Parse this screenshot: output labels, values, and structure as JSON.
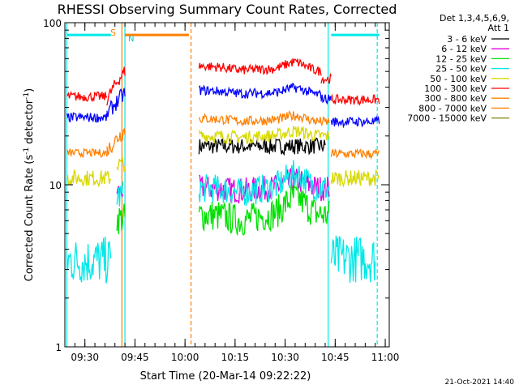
{
  "chart_data": {
    "type": "line",
    "title": "RHESSI Observing Summary Count Rates, Corrected",
    "xlabel": "Start Time (20-Mar-14 09:22:22)",
    "ylabel_main": "Corrected Count Rate (s",
    "ylabel_sup1": "-1",
    "ylabel_mid": " detector",
    "ylabel_sup2": "-1",
    "ylabel_end": ")",
    "yscale": "log",
    "ylim": [
      1,
      100
    ],
    "xlim_minutes": [
      9.4,
      11.02
    ],
    "y_ticks": [
      "1",
      "10",
      "100"
    ],
    "x_ticks": [
      {
        "t": 9.5,
        "label": "09:30"
      },
      {
        "t": 9.75,
        "label": "09:45"
      },
      {
        "t": 10.0,
        "label": "10:00"
      },
      {
        "t": 10.25,
        "label": "10:15"
      },
      {
        "t": 10.5,
        "label": "10:30"
      },
      {
        "t": 10.75,
        "label": "10:45"
      },
      {
        "t": 11.0,
        "label": "11:00"
      }
    ],
    "legend_header": [
      "Det 1,3,4,5,6,9,",
      "Att 1"
    ],
    "legend_position": "right",
    "markers": {
      "saa_label": "S",
      "night_label": "N"
    },
    "footer_date": "21-Oct-2021 14:40",
    "series": [
      {
        "name": "3 - 6 keV",
        "color": "#000000",
        "segments": [
          [
            10.07,
            10.6,
            17.3,
            0.05,
            0,
            0
          ],
          [
            10.6,
            10.7,
            17.3,
            0.05,
            0,
            0
          ]
        ]
      },
      {
        "name": "6 - 12 keV",
        "color": "#e000e0",
        "segments": [
          [
            9.66,
            9.69,
            9.2,
            0.06,
            0,
            0
          ],
          [
            10.07,
            10.72,
            9.5,
            0.08,
            0.12,
            0
          ]
        ]
      },
      {
        "name": "12 - 25 keV",
        "color": "#00e000",
        "segments": [
          [
            9.66,
            9.7,
            6.2,
            0.1,
            0,
            0
          ],
          [
            10.07,
            10.72,
            6.5,
            0.1,
            0.28,
            0
          ]
        ]
      },
      {
        "name": "25 - 50 keV",
        "color": "#00e8e8",
        "segments": [
          [
            9.41,
            9.63,
            3.4,
            0.15,
            0,
            0
          ],
          [
            9.66,
            9.69,
            8.5,
            0.1,
            0,
            0
          ],
          [
            10.07,
            10.72,
            9.5,
            0.09,
            0.22,
            0
          ],
          [
            10.73,
            10.95,
            3.5,
            0.15,
            0,
            0
          ]
        ]
      },
      {
        "name": "50 - 100 keV",
        "color": "#d8d800",
        "segments": [
          [
            9.41,
            9.63,
            11.0,
            0.05,
            0,
            0
          ],
          [
            9.66,
            9.7,
            13.5,
            0.05,
            0,
            0
          ],
          [
            10.07,
            10.72,
            20.0,
            0.04,
            0.07,
            0
          ],
          [
            10.73,
            10.97,
            11.0,
            0.05,
            0,
            0
          ]
        ]
      },
      {
        "name": "100 - 300 keV",
        "color": "#ff0000",
        "segments": [
          [
            9.41,
            9.61,
            35.0,
            0.03,
            0,
            0
          ],
          [
            9.61,
            9.7,
            42.0,
            0.04,
            0,
            0.4
          ],
          [
            10.07,
            10.68,
            52.0,
            0.03,
            0.12,
            -0.08
          ],
          [
            10.68,
            10.73,
            45.0,
            0.03,
            0,
            0
          ],
          [
            10.73,
            10.97,
            33.5,
            0.03,
            0,
            0
          ]
        ]
      },
      {
        "name": "300 - 800 keV",
        "color": "#ff8000",
        "segments": [
          [
            9.41,
            9.61,
            15.7,
            0.025,
            0,
            0
          ],
          [
            9.61,
            9.7,
            19.0,
            0.05,
            0,
            0.3
          ],
          [
            10.07,
            10.72,
            25.0,
            0.03,
            0.08,
            -0.05
          ],
          [
            10.73,
            10.97,
            15.5,
            0.03,
            0,
            0
          ]
        ]
      },
      {
        "name": "800 - 7000 keV",
        "color": "#ff8000",
        "segments": [
          [
            9.7,
            10.02,
            84.0,
            0.0,
            0,
            0
          ]
        ]
      },
      {
        "name": "7000 - 15000 keV",
        "color": "#808000",
        "segments": []
      },
      {
        "name": "25 - 50 keV (flag)",
        "color": "#00e8e8",
        "segments": [
          [
            9.41,
            9.63,
            84.0,
            0.0,
            0,
            0
          ],
          [
            10.73,
            10.97,
            84.0,
            0.0,
            0,
            0
          ]
        ]
      },
      {
        "name": "25 - 50 keV (blue)",
        "color": "#0000ff",
        "segments": [
          [
            9.41,
            9.61,
            26.0,
            0.03,
            0,
            0
          ],
          [
            9.61,
            9.7,
            32.0,
            0.05,
            0,
            0.3
          ],
          [
            10.07,
            10.68,
            37.0,
            0.03,
            0.09,
            -0.07
          ],
          [
            10.68,
            10.73,
            34.0,
            0.03,
            0,
            0
          ],
          [
            10.73,
            10.97,
            24.5,
            0.03,
            0,
            0
          ]
        ]
      }
    ],
    "vlines": [
      {
        "t": 9.41,
        "color": "#00e8e8",
        "dash": false
      },
      {
        "t": 9.685,
        "color": "#ff8000",
        "dash": false
      },
      {
        "t": 9.7,
        "color": "#00e8e8",
        "dash": false
      },
      {
        "t": 10.03,
        "color": "#ff8000",
        "dash": true
      },
      {
        "t": 10.715,
        "color": "#00e8e8",
        "dash": false
      },
      {
        "t": 10.96,
        "color": "#00e8e8",
        "dash": true
      }
    ]
  }
}
